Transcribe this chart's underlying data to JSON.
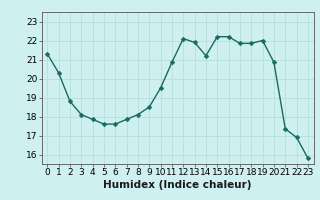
{
  "x": [
    0,
    1,
    2,
    3,
    4,
    5,
    6,
    7,
    8,
    9,
    10,
    11,
    12,
    13,
    14,
    15,
    16,
    17,
    18,
    19,
    20,
    21,
    22,
    23
  ],
  "y": [
    21.3,
    20.3,
    18.8,
    18.1,
    17.85,
    17.6,
    17.6,
    17.85,
    18.1,
    18.5,
    19.5,
    20.85,
    22.1,
    21.9,
    21.2,
    22.2,
    22.2,
    21.85,
    21.85,
    22.0,
    20.85,
    17.35,
    16.9,
    15.8
  ],
  "xlim": [
    -0.5,
    23.5
  ],
  "ylim": [
    15.5,
    23.5
  ],
  "yticks": [
    16,
    17,
    18,
    19,
    20,
    21,
    22,
    23
  ],
  "xticks": [
    0,
    1,
    2,
    3,
    4,
    5,
    6,
    7,
    8,
    9,
    10,
    11,
    12,
    13,
    14,
    15,
    16,
    17,
    18,
    19,
    20,
    21,
    22,
    23
  ],
  "xlabel": "Humidex (Indice chaleur)",
  "line_color": "#1a6b5e",
  "marker_color": "#1a6b5e",
  "bg_color": "#cff0f0",
  "grid_color": "#b8dede",
  "tick_label_fontsize": 6.5,
  "xlabel_fontsize": 7.5,
  "line_width": 1.0,
  "marker_size": 2.5
}
